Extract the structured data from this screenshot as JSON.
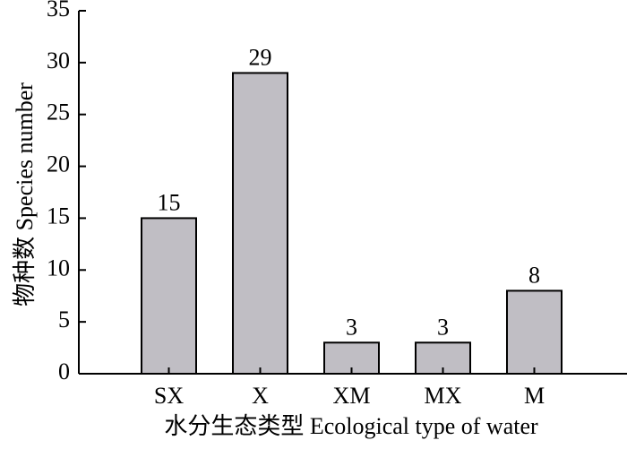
{
  "chart_data": {
    "type": "bar",
    "categories": [
      "SX",
      "X",
      "XM",
      "MX",
      "M"
    ],
    "values": [
      15,
      29,
      3,
      3,
      8
    ],
    "data_labels": [
      "15",
      "29",
      "3",
      "3",
      "8"
    ],
    "yticks": [
      "0",
      "5",
      "10",
      "15",
      "20",
      "25",
      "30",
      "35"
    ],
    "ylim": [
      0,
      35
    ],
    "xlabel": "水分生态类型 Ecological type of water",
    "ylabel": "物种数 Species number",
    "bar_color": "#c0bec4",
    "grid": false,
    "legend": "none"
  }
}
